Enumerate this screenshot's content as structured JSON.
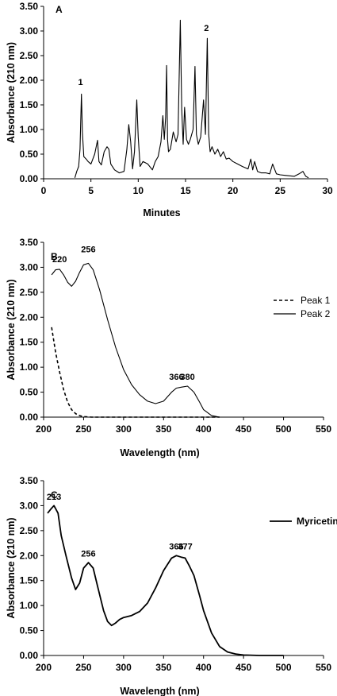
{
  "chart_data": [
    {
      "type": "line",
      "panel_label": "A",
      "xlabel": "Minutes",
      "ylabel": "Absorbance (210 nm)",
      "xlim": [
        0,
        30
      ],
      "ylim": [
        0,
        3.5
      ],
      "x_ticks": [
        "0",
        "5",
        "10",
        "15",
        "20",
        "25",
        "30"
      ],
      "y_ticks": [
        "0.00",
        "0.50",
        "1.00",
        "1.50",
        "2.00",
        "2.50",
        "3.00",
        "3.50"
      ],
      "grid": false,
      "annotations": [
        {
          "text": "1",
          "x": 3.9,
          "y": 1.9
        },
        {
          "text": "2",
          "x": 17.2,
          "y": 3.0
        }
      ],
      "series": [
        {
          "line_style": "solid",
          "x": [
            3.3,
            3.5,
            3.7,
            3.85,
            4.0,
            4.1,
            4.25,
            4.5,
            4.7,
            5.0,
            5.4,
            5.7,
            5.85,
            6.1,
            6.4,
            6.7,
            6.9,
            7.1,
            7.5,
            8.0,
            8.5,
            8.8,
            9.0,
            9.2,
            9.4,
            9.6,
            9.85,
            10.0,
            10.2,
            10.5,
            11.0,
            11.5,
            11.8,
            12.1,
            12.4,
            12.6,
            12.75,
            12.9,
            13.0,
            13.1,
            13.2,
            13.4,
            13.7,
            14.0,
            14.2,
            14.45,
            14.6,
            14.75,
            14.9,
            15.1,
            15.3,
            15.5,
            15.8,
            16.0,
            16.15,
            16.35,
            16.6,
            16.9,
            17.1,
            17.3,
            17.45,
            17.6,
            17.8,
            18.1,
            18.4,
            18.7,
            19.0,
            19.3,
            19.6,
            20.0,
            20.5,
            21.0,
            21.6,
            21.9,
            22.1,
            22.3,
            22.6,
            23.0,
            23.5,
            23.9,
            24.2,
            24.6,
            25.0,
            25.5,
            26.0,
            26.5,
            27.0,
            27.4,
            27.7,
            28.0
          ],
          "y": [
            0.02,
            0.15,
            0.25,
            0.6,
            1.72,
            0.95,
            0.45,
            0.4,
            0.35,
            0.3,
            0.5,
            0.78,
            0.35,
            0.28,
            0.55,
            0.65,
            0.6,
            0.3,
            0.18,
            0.12,
            0.15,
            0.6,
            1.1,
            0.75,
            0.2,
            0.55,
            1.6,
            0.85,
            0.25,
            0.35,
            0.3,
            0.18,
            0.35,
            0.45,
            0.75,
            1.28,
            0.8,
            1.25,
            2.3,
            0.8,
            0.55,
            0.6,
            0.95,
            0.75,
            0.9,
            3.22,
            1.4,
            0.7,
            1.45,
            0.8,
            0.7,
            0.8,
            1.0,
            2.28,
            0.9,
            0.7,
            0.85,
            1.6,
            0.9,
            2.85,
            0.9,
            0.55,
            0.65,
            0.5,
            0.6,
            0.45,
            0.55,
            0.4,
            0.42,
            0.35,
            0.3,
            0.25,
            0.2,
            0.4,
            0.18,
            0.35,
            0.15,
            0.12,
            0.12,
            0.1,
            0.3,
            0.1,
            0.08,
            0.07,
            0.06,
            0.05,
            0.1,
            0.15,
            0.05,
            0.02
          ]
        }
      ]
    },
    {
      "type": "line",
      "panel_label": "B",
      "xlabel": "Wavelength (nm)",
      "ylabel": "Absorbance (210 nm)",
      "xlim": [
        200,
        550
      ],
      "ylim": [
        0,
        3.5
      ],
      "x_ticks": [
        "200",
        "250",
        "300",
        "350",
        "400",
        "450",
        "500",
        "550"
      ],
      "y_ticks": [
        "0.00",
        "0.50",
        "1.00",
        "1.50",
        "2.00",
        "2.50",
        "3.00",
        "3.50"
      ],
      "grid": false,
      "legend_position": "right",
      "annotations": [
        {
          "text": "220",
          "x": 220,
          "y": 3.1
        },
        {
          "text": "256",
          "x": 256,
          "y": 3.3
        },
        {
          "text": "366",
          "x": 366,
          "y": 0.75
        },
        {
          "text": "380",
          "x": 380,
          "y": 0.75
        }
      ],
      "series": [
        {
          "name": "Peak 1",
          "line_style": "dashed",
          "x": [
            210,
            215,
            220,
            225,
            230,
            235,
            240,
            245,
            250,
            260,
            280,
            300,
            350,
            400,
            420
          ],
          "y": [
            1.8,
            1.3,
            0.9,
            0.55,
            0.3,
            0.15,
            0.07,
            0.03,
            0.01,
            0.0,
            0.0,
            0.0,
            0.0,
            0.0,
            0.0
          ]
        },
        {
          "name": "Peak 2",
          "line_style": "solid",
          "x": [
            210,
            215,
            220,
            225,
            230,
            235,
            240,
            245,
            250,
            256,
            262,
            270,
            280,
            290,
            300,
            310,
            320,
            330,
            340,
            350,
            360,
            366,
            372,
            380,
            388,
            395,
            400,
            410,
            420
          ],
          "y": [
            2.85,
            2.95,
            2.96,
            2.85,
            2.7,
            2.62,
            2.72,
            2.9,
            3.05,
            3.08,
            2.95,
            2.55,
            1.95,
            1.4,
            0.95,
            0.65,
            0.45,
            0.32,
            0.27,
            0.32,
            0.5,
            0.58,
            0.6,
            0.62,
            0.5,
            0.3,
            0.15,
            0.03,
            0.0
          ]
        }
      ]
    },
    {
      "type": "line",
      "panel_label": "C",
      "xlabel": "Wavelength (nm)",
      "ylabel": "Absorbance (210 nm)",
      "xlim": [
        200,
        550
      ],
      "ylim": [
        0,
        3.5
      ],
      "x_ticks": [
        "200",
        "250",
        "300",
        "350",
        "400",
        "450",
        "500",
        "550"
      ],
      "y_ticks": [
        "0.00",
        "0.50",
        "1.00",
        "1.50",
        "2.00",
        "2.50",
        "3.00",
        "3.50"
      ],
      "grid": false,
      "legend_position": "right",
      "annotations": [
        {
          "text": "213",
          "x": 213,
          "y": 3.12
        },
        {
          "text": "256",
          "x": 256,
          "y": 1.98
        },
        {
          "text": "366",
          "x": 366,
          "y": 2.12
        },
        {
          "text": "377",
          "x": 377,
          "y": 2.12
        }
      ],
      "series": [
        {
          "name": "Myricetin",
          "line_style": "solid",
          "x": [
            205,
            210,
            213,
            218,
            222,
            228,
            235,
            240,
            245,
            250,
            256,
            262,
            268,
            275,
            280,
            285,
            290,
            295,
            300,
            305,
            310,
            320,
            330,
            340,
            350,
            360,
            366,
            372,
            377,
            382,
            388,
            395,
            400,
            410,
            420,
            430,
            440,
            450,
            470,
            500
          ],
          "y": [
            2.85,
            2.95,
            3.0,
            2.85,
            2.4,
            2.0,
            1.55,
            1.32,
            1.45,
            1.75,
            1.86,
            1.75,
            1.35,
            0.9,
            0.68,
            0.6,
            0.65,
            0.72,
            0.76,
            0.78,
            0.8,
            0.88,
            1.05,
            1.35,
            1.7,
            1.95,
            2.0,
            1.97,
            1.95,
            1.8,
            1.6,
            1.2,
            0.9,
            0.45,
            0.18,
            0.07,
            0.03,
            0.01,
            0.0,
            0.0
          ]
        }
      ]
    }
  ]
}
